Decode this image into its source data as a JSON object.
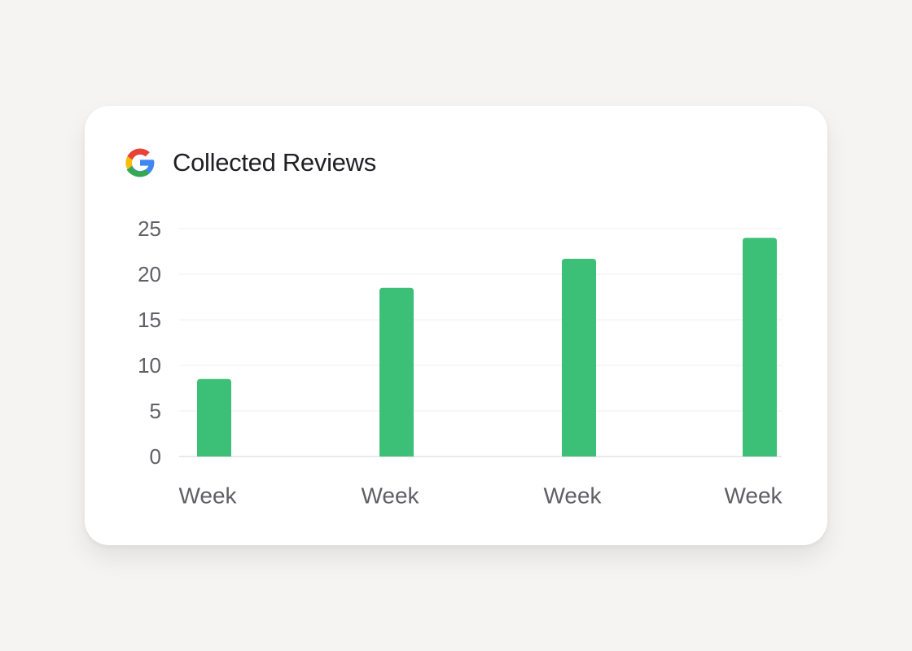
{
  "card": {
    "title": "Collected Reviews",
    "logo_icon": "google-g-icon"
  },
  "colors": {
    "background": "#f5f4f2",
    "card": "#ffffff",
    "bar": "#3cc077",
    "gridline": "#efefef",
    "axis_text": "#5f5f66",
    "title_text": "#1f1f24",
    "google_blue": "#4285f4",
    "google_red": "#ea4335",
    "google_yellow": "#fbbc05",
    "google_green": "#34a853"
  },
  "chart_data": {
    "type": "bar",
    "title": "Collected Reviews",
    "categories": [
      "Week",
      "Week",
      "Week",
      "Week"
    ],
    "values": [
      8.5,
      18.5,
      21.7,
      24
    ],
    "xlabel": "",
    "ylabel": "",
    "ylim": [
      0,
      25
    ],
    "yticks": [
      0,
      5,
      10,
      15,
      20,
      25
    ],
    "grid": true,
    "legend": "none"
  }
}
